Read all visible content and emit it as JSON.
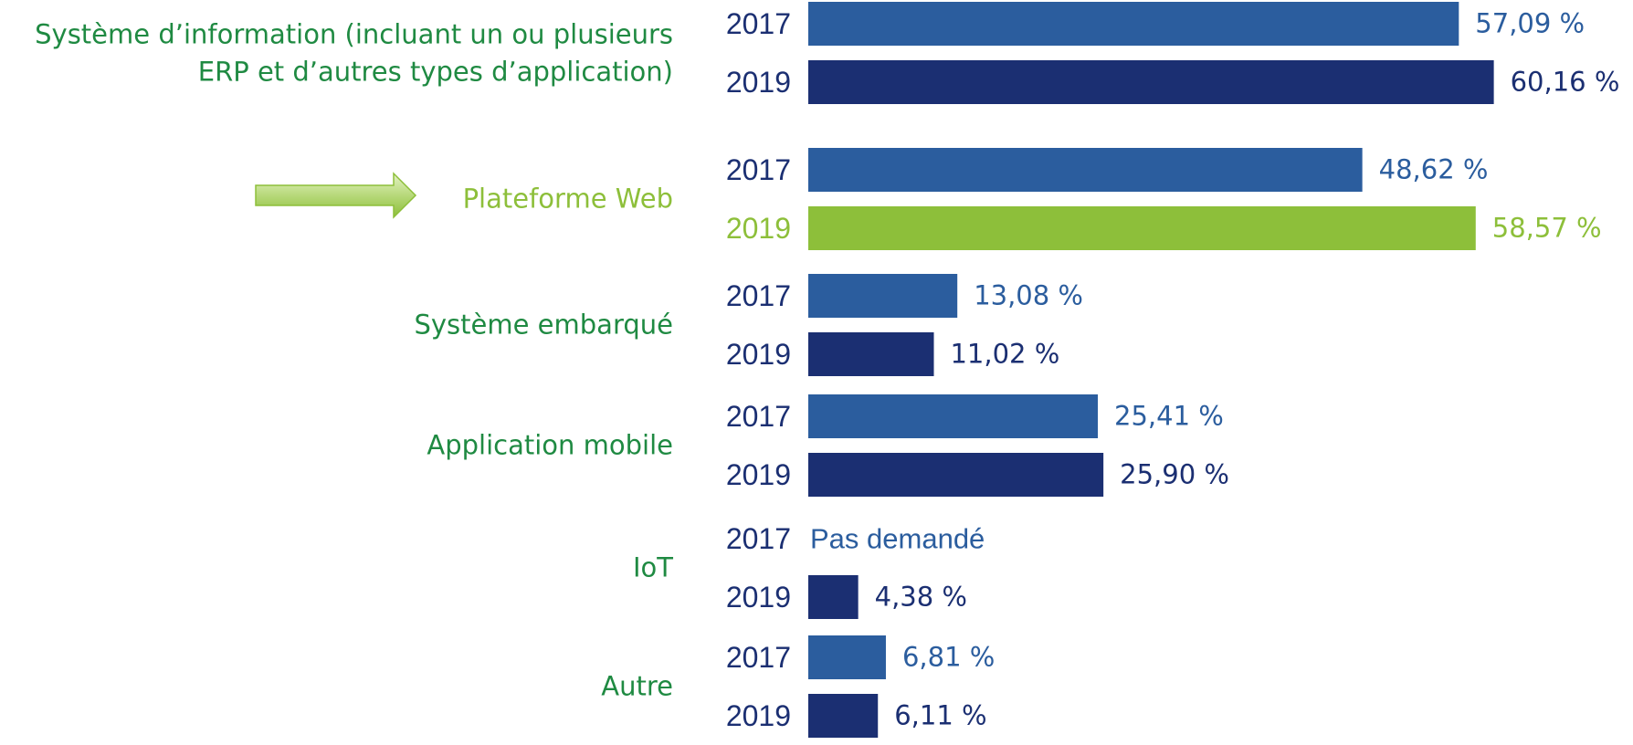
{
  "chart_data": {
    "type": "bar",
    "orientation": "horizontal",
    "categories": [
      "Système d’information (incluant un ou plusieurs\nERP et d’autres types d’application)",
      "Plateforme Web",
      "Système embarqué",
      "Application mobile",
      "IoT",
      "Autre"
    ],
    "series": [
      {
        "name": "2017",
        "color": "#2b5d9e",
        "values": [
          57.09,
          48.62,
          13.08,
          25.41,
          null,
          6.81
        ],
        "value_labels": [
          "57,09 %",
          "48,62 %",
          "13,08 %",
          "25,41 %",
          "Pas demandé",
          "6,81 %"
        ]
      },
      {
        "name": "2019",
        "color": "#1b2f72",
        "values": [
          60.16,
          58.57,
          11.02,
          25.9,
          4.38,
          6.11
        ],
        "value_labels": [
          "60,16 %",
          "58,57 %",
          "11,02 %",
          "25,90 %",
          "4,38 %",
          "6,11 %"
        ]
      }
    ],
    "highlight": {
      "category": 1,
      "series": 1,
      "color": "#8dbf3a"
    },
    "xlim": [
      0,
      65
    ]
  }
}
